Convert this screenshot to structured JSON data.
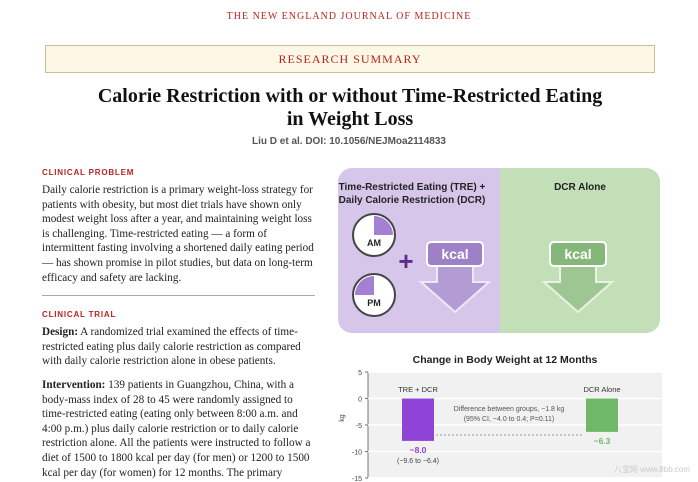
{
  "header": {
    "journal": "the NEW ENGLAND JOURNAL of MEDICINE",
    "banner": "RESEARCH SUMMARY",
    "title": "Calorie Restriction with or without Time-Restricted Eating in Weight Loss",
    "citation": "Liu D et al. DOI: 10.1056/NEJMoa2114833"
  },
  "sections": [
    {
      "heading": "CLINICAL PROBLEM",
      "paragraphs": [
        {
          "text": "Daily calorie restriction is a primary weight-loss strategy for patients with obesity, but most diet trials have shown only modest weight loss after a year, and maintaining weight loss is challenging. Time-restricted eating — a form of intermittent fasting involving a shortened daily eating period — has shown promise in pilot studies, but data on long-term efficacy and safety are lacking."
        }
      ]
    },
    {
      "heading": "CLINICAL TRIAL",
      "paragraphs": [
        {
          "lead": "Design:",
          "text": "A randomized trial examined the effects of time-restricted eating plus daily calorie restriction as compared with daily calorie restriction alone in obese patients."
        },
        {
          "lead": "Intervention:",
          "text": "139 patients in Guangzhou, China, with a body-mass index of 28 to 45 were randomly assigned to time-restricted eating (eating only between 8:00 a.m. and 4:00 p.m.) plus daily calorie restriction or to daily calorie restriction alone. All the patients were instructed to follow a diet of 1500 to 1800 kcal per day (for men) or 1200 to 1500 kcal per day (for women) for 12 months. The primary outcome was the difference between the two groups"
        }
      ]
    }
  ],
  "graphic": {
    "left_title": "Time-Restricted Eating (TRE) + Daily Calorie Restriction (DCR)",
    "right_title": "DCR Alone",
    "clock_am": "AM",
    "clock_pm": "PM",
    "plus": "+",
    "kcal_left": "kcal",
    "kcal_right": "kcal"
  },
  "figure": {
    "type": "bar",
    "title": "Change in Body Weight at 12 Months",
    "y_label": "kg",
    "categories": [
      "TRE + DCR",
      "DCR Alone"
    ],
    "values": [
      -8.0,
      -6.3
    ],
    "value_labels": [
      "−8.0",
      "−6.3"
    ],
    "colors": [
      "#8e44d6",
      "#6fb86a"
    ],
    "ci_label": "(−9.6 to −6.4)",
    "annotation": [
      "Difference between groups, −1.8 kg",
      "(95% CI, −4.0 to 0.4; P=0.11)"
    ],
    "ylim": [
      -15,
      5
    ],
    "yticks": [
      5,
      0,
      -5,
      -10,
      -15
    ]
  },
  "watermark": "八宝网 www.8bb.com"
}
